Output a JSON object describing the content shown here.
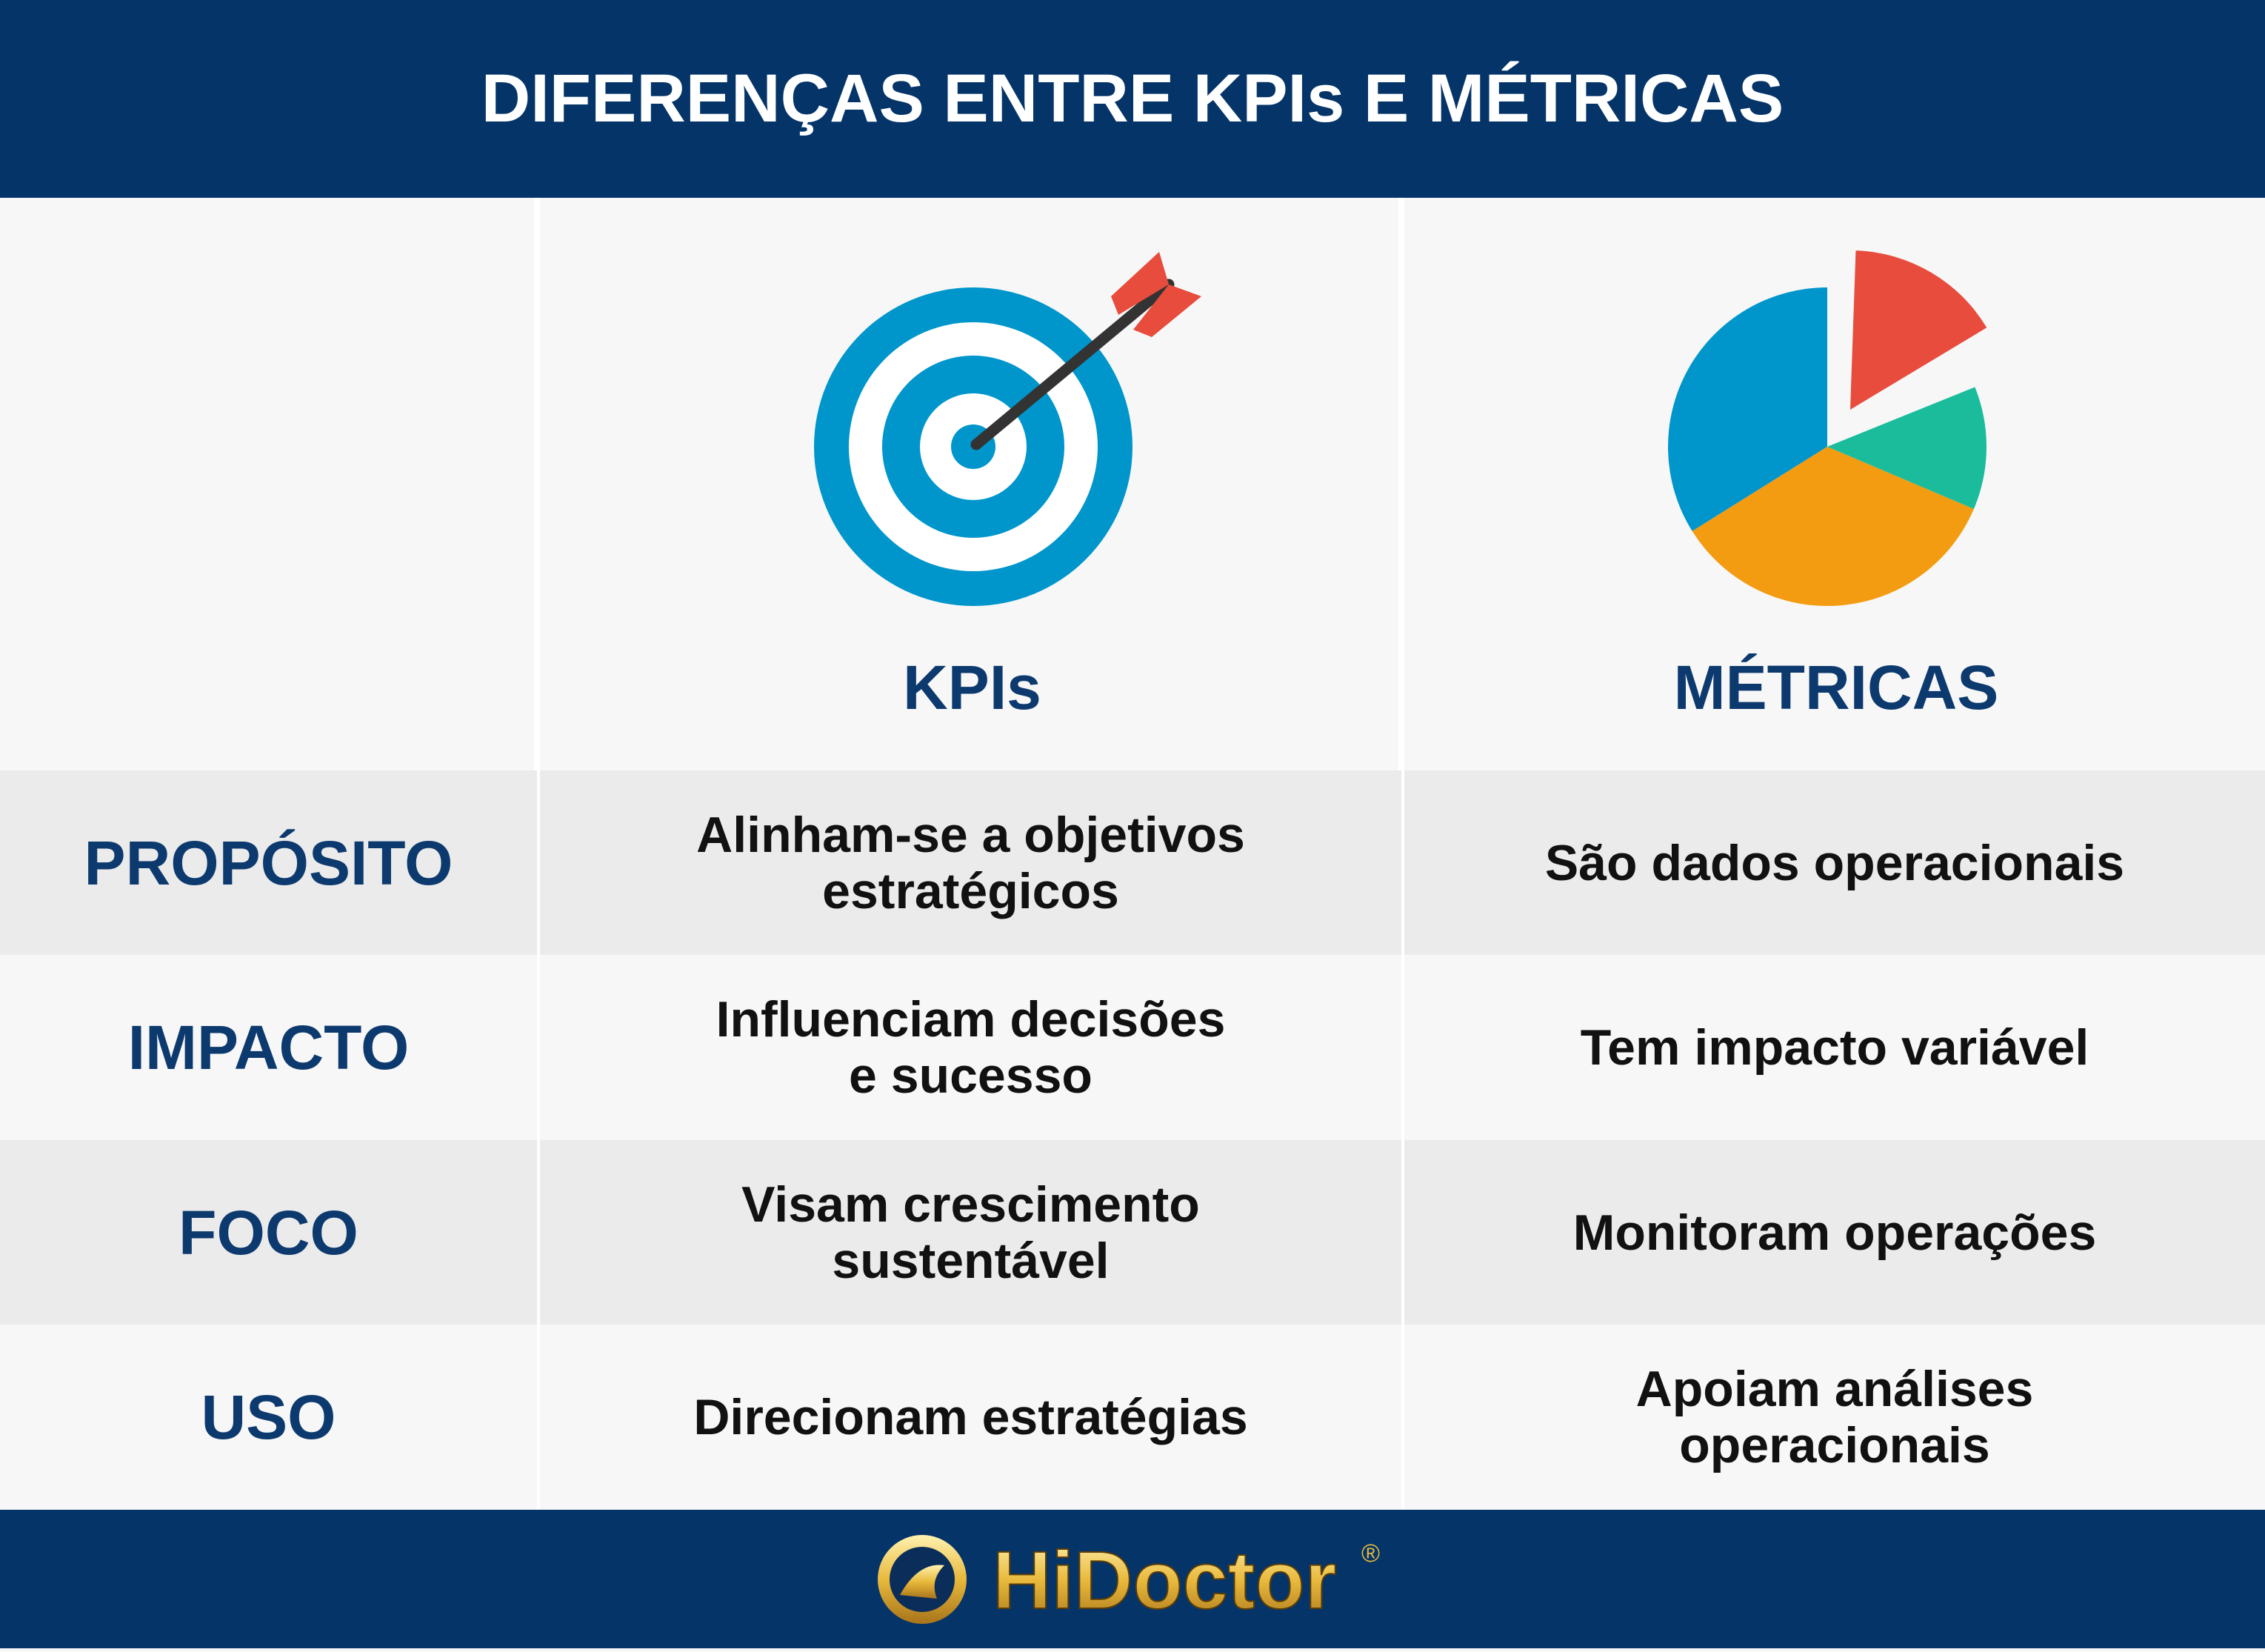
{
  "header": {
    "title": "DIFERENÇAS ENTRE KPIs E MÉTRICAS"
  },
  "columns": [
    "KPIs",
    "MÉTRICAS"
  ],
  "rows": [
    {
      "label": "PROPÓSITO",
      "kpis": [
        "Alinham-se a objetivos",
        "estratégicos"
      ],
      "metricas": [
        "São dados operacionais"
      ]
    },
    {
      "label": "IMPACTO",
      "kpis": [
        "Influenciam decisões",
        "e sucesso"
      ],
      "metricas": [
        "Tem impacto variável"
      ]
    },
    {
      "label": "FOCO",
      "kpis": [
        "Visam crescimento",
        "sustentável"
      ],
      "metricas": [
        "Monitoram operações"
      ]
    },
    {
      "label": "USO",
      "kpis": [
        "Direcionam estratégias"
      ],
      "metricas": [
        "Apoiam análises",
        "operacionais"
      ]
    }
  ],
  "footer": {
    "brand": "HiDoctor",
    "mark": "®"
  }
}
